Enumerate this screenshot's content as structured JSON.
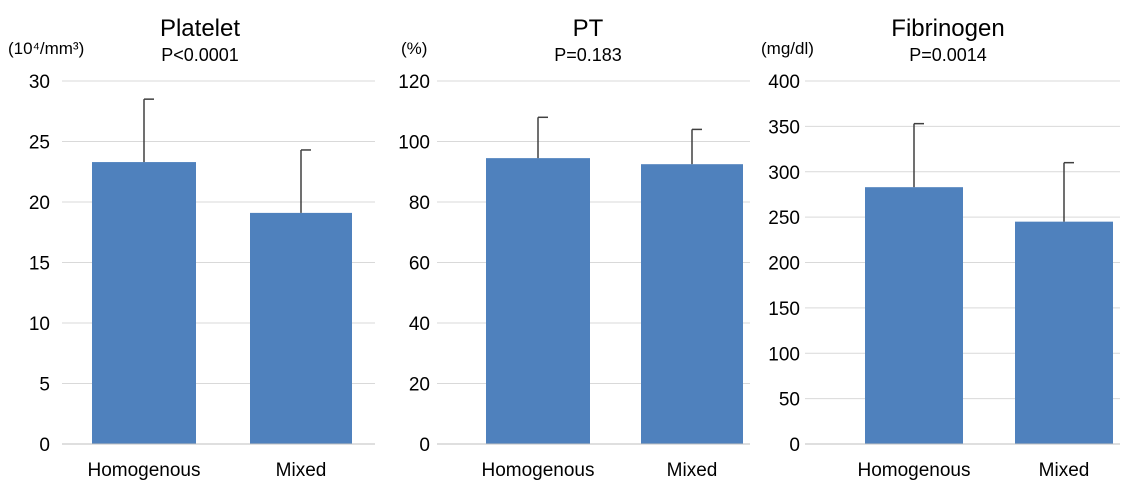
{
  "chart_data": [
    {
      "type": "bar",
      "title": "Platelet",
      "subtitle": "P<0.0001",
      "ylabel": "(10⁴/mm³)",
      "categories": [
        "Homogenous",
        "Mixed"
      ],
      "values": [
        23.3,
        19.1
      ],
      "errors": [
        5.2,
        5.2
      ],
      "ylim": [
        0,
        30
      ],
      "yticks": [
        0,
        5,
        10,
        15,
        20,
        25,
        30
      ],
      "grid": true,
      "bar_color": "#4f81bd"
    },
    {
      "type": "bar",
      "title": "PT",
      "subtitle": "P=0.183",
      "ylabel": "(%)",
      "categories": [
        "Homogenous",
        "Mixed"
      ],
      "values": [
        94.5,
        92.5
      ],
      "errors": [
        13.5,
        11.5
      ],
      "ylim": [
        0,
        120
      ],
      "yticks": [
        0,
        20,
        40,
        60,
        80,
        100,
        120
      ],
      "grid": true,
      "bar_color": "#4f81bd"
    },
    {
      "type": "bar",
      "title": "Fibrinogen",
      "subtitle": "P=0.0014",
      "ylabel": "(mg/dl)",
      "categories": [
        "Homogenous",
        "Mixed"
      ],
      "values": [
        283,
        245
      ],
      "errors": [
        70,
        65
      ],
      "ylim": [
        0,
        400
      ],
      "yticks": [
        0,
        50,
        100,
        150,
        200,
        250,
        300,
        350,
        400
      ],
      "grid": true,
      "bar_color": "#4f81bd"
    }
  ]
}
